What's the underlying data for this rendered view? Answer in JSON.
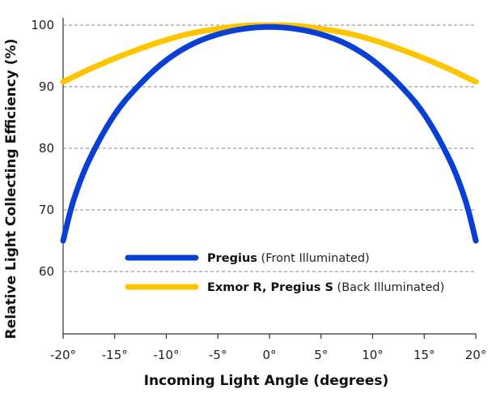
{
  "chart_data": {
    "type": "line",
    "title": "",
    "xlabel": "Incoming Light Angle (degrees)",
    "ylabel": "Relative Light Collecting Efficiency (%)",
    "x_ticks": [
      "-20°",
      "-15°",
      "-10°",
      "-5°",
      "0°",
      "5°",
      "10°",
      "15°",
      "20°"
    ],
    "y_ticks": [
      "60",
      "70",
      "80",
      "90",
      "100"
    ],
    "xlim": [
      -20,
      20
    ],
    "ylim": [
      47,
      100
    ],
    "grid": "horizontal dashed",
    "legend_position": "lower-center",
    "x": [
      -20,
      -19,
      -17.5,
      -15,
      -12.5,
      -10,
      -7.5,
      -5,
      -2.5,
      0,
      2.5,
      5,
      7.5,
      10,
      12.5,
      15,
      17.5,
      19,
      20
    ],
    "series": [
      {
        "name_bold": "Pregius",
        "name_note": "(Front Illuminated)",
        "color": "#0a3fd6",
        "values": [
          65,
          71.5,
          78,
          85.5,
          90.5,
          94.3,
          96.9,
          98.5,
          99.4,
          99.7,
          99.4,
          98.5,
          96.9,
          94.3,
          90.5,
          85.5,
          78,
          71.5,
          65
        ]
      },
      {
        "name_bold": "Exmor R, Pregius S",
        "name_note": "(Back Illuminated)",
        "color": "#ffc400",
        "values": [
          90.8,
          91.6,
          92.8,
          94.6,
          96.2,
          97.6,
          98.7,
          99.4,
          99.9,
          100,
          99.9,
          99.4,
          98.7,
          97.6,
          96.2,
          94.6,
          92.8,
          91.6,
          90.8
        ]
      }
    ]
  }
}
